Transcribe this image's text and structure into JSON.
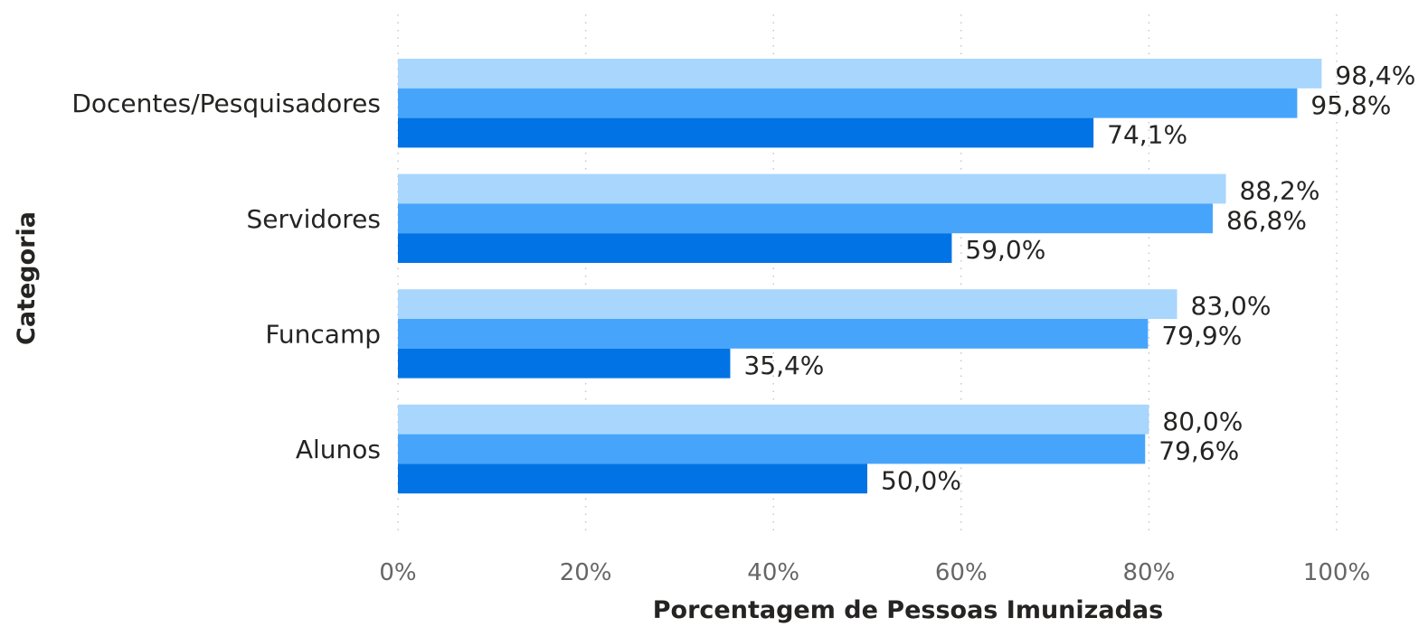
{
  "chart_data": {
    "type": "bar",
    "orientation": "horizontal",
    "categories": [
      "Docentes/Pesquisadores",
      "Servidores",
      "Funcamp",
      "Alunos"
    ],
    "series": [
      {
        "color": "#a8d6fd",
        "values": [
          98.4,
          88.2,
          83.0,
          80.0
        ],
        "labels": [
          "98,4%",
          "88,2%",
          "83,0%",
          "80,0%"
        ]
      },
      {
        "color": "#47a4fb",
        "values": [
          95.8,
          86.8,
          79.9,
          79.6
        ],
        "labels": [
          "95,8%",
          "86,8%",
          "79,9%",
          "79,6%"
        ]
      },
      {
        "color": "#0173e4",
        "values": [
          74.1,
          59.0,
          35.4,
          50.0
        ],
        "labels": [
          "74,1%",
          "59,0%",
          "35,4%",
          "50,0%"
        ]
      }
    ],
    "xlabel": "Porcentagem de Pessoas Imunizadas",
    "ylabel": "Categoria",
    "xlim": [
      0,
      100
    ],
    "xticks": [
      {
        "value": 0,
        "label": "0%"
      },
      {
        "value": 20,
        "label": "20%"
      },
      {
        "value": 40,
        "label": "40%"
      },
      {
        "value": 60,
        "label": "60%"
      },
      {
        "value": 80,
        "label": "80%"
      },
      {
        "value": 100,
        "label": "100%"
      }
    ],
    "grid": "vertical-dotted",
    "legend": "none"
  }
}
